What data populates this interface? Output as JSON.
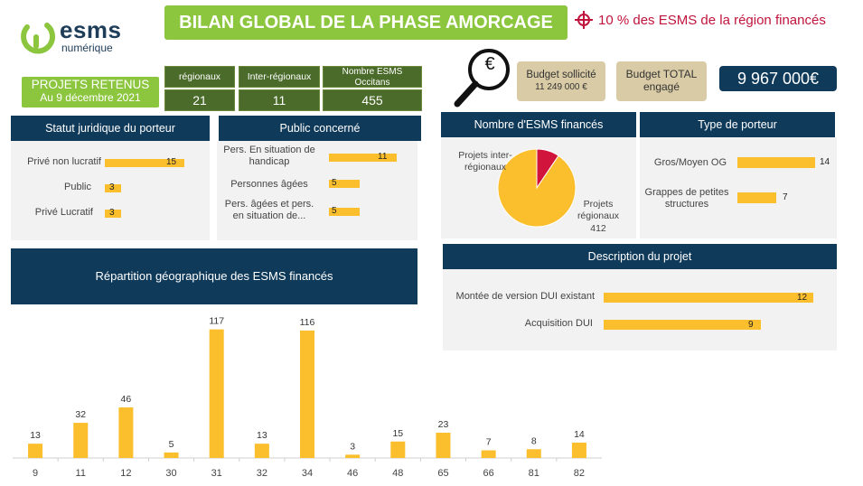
{
  "logo": {
    "line1": "esms",
    "line2": "numérique"
  },
  "title": "BILAN GLOBAL DE LA PHASE AMORCAGE",
  "target_note": "10 % des ESMS de la région financés",
  "projets": {
    "title": "PROJETS RETENUS",
    "date": "Au 9 décembre 2021"
  },
  "stats": [
    {
      "label": "régionaux",
      "value": "21"
    },
    {
      "label": "Inter-régionaux",
      "value": "11"
    },
    {
      "label": "Nombre ESMS Occitans",
      "value": "455"
    }
  ],
  "budget": {
    "solicited_label": "Budget sollicité",
    "solicited_value": "11 249 000 €",
    "total_label": "Budget TOTAL engagé",
    "total_value": "9 967 000€",
    "euro_symbol": "€"
  },
  "statut": {
    "title": "Statut juridique du porteur",
    "items": [
      {
        "label": "Privé non lucratif",
        "value": 15
      },
      {
        "label": "Public",
        "value": 3
      },
      {
        "label": "Privé Lucratif",
        "value": 3
      }
    ]
  },
  "public": {
    "title": "Public concerné",
    "items": [
      {
        "label": "Pers. En situation de handicap",
        "value": 11
      },
      {
        "label": "Personnes âgées",
        "value": 5
      },
      {
        "label": "Pers. âgées et pers. en situation de...",
        "value": 5
      }
    ]
  },
  "nombre": {
    "title": "Nombre d'ESMS financés",
    "slices": [
      {
        "label": "Projets inter-régionaux",
        "value": 43,
        "color": "#d0143c"
      },
      {
        "label": "Projets régionaux",
        "value": 412,
        "color": "#fbbe2c"
      }
    ],
    "value_412": "412"
  },
  "type": {
    "title": "Type de porteur",
    "items": [
      {
        "label": "Gros/Moyen OG",
        "value": 14
      },
      {
        "label": "Grappes de petites structures",
        "value": 7
      }
    ]
  },
  "description": {
    "title": "Description du projet",
    "items": [
      {
        "label": "Montée de version DUI existant",
        "value": 12
      },
      {
        "label": "Acquisition DUI",
        "value": 9
      }
    ]
  },
  "repartition_title": "Répartition géographique des ESMS financés",
  "colors": {
    "navy": "#0f3a5a",
    "green": "#8cc63f",
    "dark_green": "#4a6b2a",
    "yellow": "#fbbe2c",
    "red": "#c0143c"
  },
  "chart_data": {
    "type": "bar",
    "title": "Répartition géographique des ESMS financés",
    "categories": [
      "9",
      "11",
      "12",
      "30",
      "31",
      "32",
      "34",
      "46",
      "48",
      "65",
      "66",
      "81",
      "82"
    ],
    "values": [
      13,
      32,
      46,
      5,
      117,
      13,
      116,
      3,
      15,
      23,
      7,
      8,
      14
    ],
    "xlabel": "",
    "ylabel": "",
    "ylim": [
      0,
      120
    ]
  }
}
